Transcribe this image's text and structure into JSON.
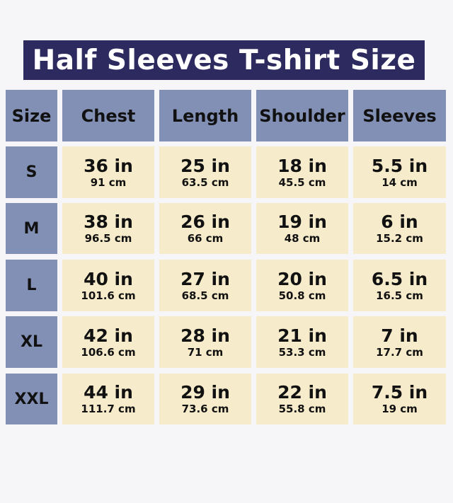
{
  "title": "Half Sleeves T-shirt Size",
  "colors": {
    "title_bg": "#2c2a5f",
    "header_bg": "#8290b5",
    "cell_bg": "#f6ebca"
  },
  "chart_data": {
    "type": "table",
    "columns": [
      "Size",
      "Chest",
      "Length",
      "Shoulder",
      "Sleeves"
    ],
    "rows": [
      {
        "size": "S",
        "values": [
          [
            "36 in",
            "91 cm"
          ],
          [
            "25 in",
            "63.5 cm"
          ],
          [
            "18 in",
            "45.5 cm"
          ],
          [
            "5.5 in",
            "14 cm"
          ]
        ]
      },
      {
        "size": "M",
        "values": [
          [
            "38 in",
            "96.5 cm"
          ],
          [
            "26 in",
            "66 cm"
          ],
          [
            "19 in",
            "48 cm"
          ],
          [
            "6 in",
            "15.2 cm"
          ]
        ]
      },
      {
        "size": "L",
        "values": [
          [
            "40 in",
            "101.6 cm"
          ],
          [
            "27 in",
            "68.5 cm"
          ],
          [
            "20 in",
            "50.8 cm"
          ],
          [
            "6.5 in",
            "16.5 cm"
          ]
        ]
      },
      {
        "size": "XL",
        "values": [
          [
            "42 in",
            "106.6 cm"
          ],
          [
            "28 in",
            "71 cm"
          ],
          [
            "21 in",
            "53.3 cm"
          ],
          [
            "7 in",
            "17.7 cm"
          ]
        ]
      },
      {
        "size": "XXL",
        "values": [
          [
            "44 in",
            "111.7 cm"
          ],
          [
            "29 in",
            "73.6 cm"
          ],
          [
            "22 in",
            "55.8 cm"
          ],
          [
            "7.5 in",
            "19 cm"
          ]
        ]
      }
    ]
  }
}
